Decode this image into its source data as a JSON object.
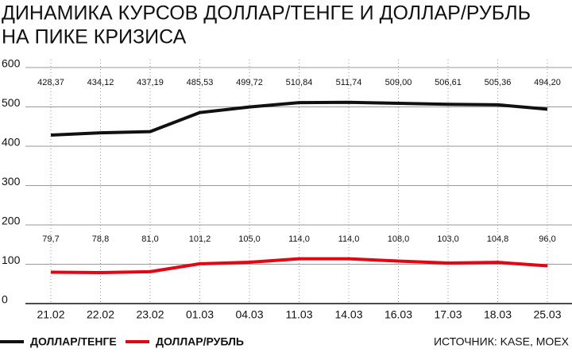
{
  "chart_data": {
    "type": "line",
    "title": [
      "ДИНАМИКА КУРСОВ ДОЛЛАР/ТЕНГЕ И ДОЛЛАР/РУБЛЬ",
      "НА ПИКЕ КРИЗИСА"
    ],
    "categories": [
      "21.02",
      "22.02",
      "23.02",
      "01.03",
      "04.03",
      "11.03",
      "14.03",
      "16.03",
      "17.03",
      "18.03",
      "25.03"
    ],
    "series": [
      {
        "name": "ДОЛЛАР/ТЕНГЕ",
        "color": "#111111",
        "values": [
          428.37,
          434.12,
          437.19,
          485.53,
          499.72,
          510.84,
          511.74,
          509.0,
          506.61,
          505.36,
          494.2
        ],
        "value_labels": [
          "428,37",
          "434,12",
          "437,19",
          "485,53",
          "499,72",
          "510,84",
          "511,74",
          "509,00",
          "506,61",
          "505,36",
          "494,20"
        ]
      },
      {
        "name": "ДОЛЛАР/РУБЛЬ",
        "color": "#e30613",
        "values": [
          79.7,
          78.8,
          81.0,
          101.2,
          105.0,
          114.0,
          114.0,
          108.0,
          103.0,
          104.8,
          96.0
        ],
        "value_labels": [
          "79,7",
          "78,8",
          "81,0",
          "101,2",
          "105,0",
          "114,0",
          "114,0",
          "108,0",
          "103,0",
          "104,8",
          "96,0"
        ]
      }
    ],
    "ylim": [
      0,
      600
    ],
    "yticks": [
      0,
      100,
      200,
      300,
      400,
      500,
      600
    ],
    "grid": true,
    "source": "ИСТОЧНИК: KASE, MOEX"
  }
}
